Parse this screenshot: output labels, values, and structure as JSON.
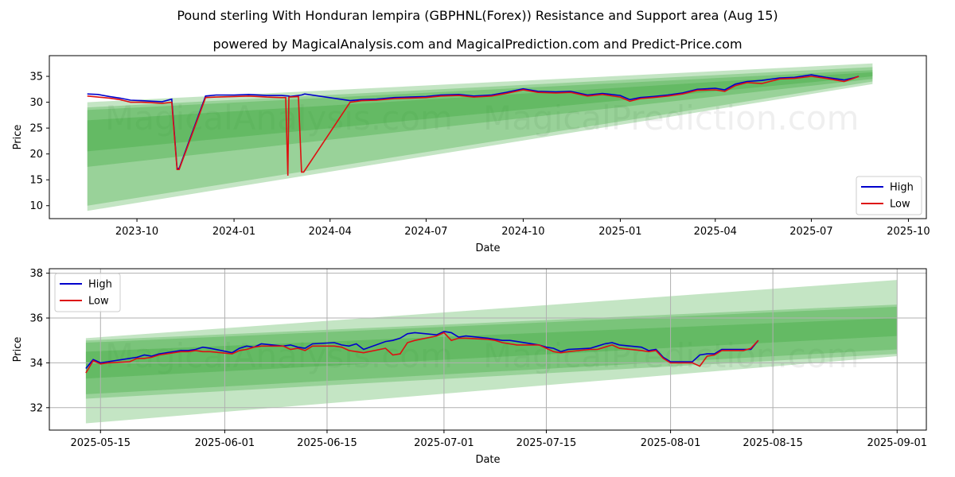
{
  "title": "Pound sterling With Honduran lempira (GBPHNL(Forex)) Resistance and Support area (Aug 15)",
  "subtitle": "powered by MagicalAnalysis.com and MagicalPrediction.com and Predict-Price.com",
  "watermarks": [
    "MagicalAnalysis.com",
    "MagicalPrediction.com"
  ],
  "colors": {
    "high": "#0000cc",
    "low": "#dd1111",
    "band": "#2ca02c",
    "grid": "#b0b0b0"
  },
  "chart_data": [
    {
      "type": "line",
      "xlabel": "Date",
      "ylabel": "Price",
      "x_ticks": [
        "2023-10",
        "2024-01",
        "2024-04",
        "2024-07",
        "2024-10",
        "2025-01",
        "2025-04",
        "2025-07",
        "2025-10"
      ],
      "y_ticks": [
        10,
        15,
        20,
        25,
        30,
        35
      ],
      "xlim": [
        "2023-07-10",
        "2025-10-18"
      ],
      "ylim": [
        7.5,
        39
      ],
      "grid": false,
      "legend": "lower-right",
      "legend_entries": [
        "High",
        "Low"
      ],
      "bands": [
        {
          "x": [
            "2023-08-15",
            "2025-08-28"
          ],
          "lower": [
            9.0,
            33.5
          ],
          "upper": [
            30.0,
            37.5
          ]
        },
        {
          "x": [
            "2023-08-15",
            "2025-08-28"
          ],
          "lower": [
            10.0,
            34.0
          ],
          "upper": [
            29.0,
            36.8
          ]
        },
        {
          "x": [
            "2023-08-15",
            "2025-08-28"
          ],
          "lower": [
            17.5,
            34.5
          ],
          "upper": [
            28.5,
            36.2
          ]
        },
        {
          "x": [
            "2023-08-15",
            "2025-08-28"
          ],
          "lower": [
            20.5,
            35.0
          ],
          "upper": [
            26.5,
            35.8
          ]
        }
      ],
      "series": [
        {
          "name": "High",
          "x": [
            "2023-08-15",
            "2023-08-25",
            "2023-09-05",
            "2023-09-15",
            "2023-09-25",
            "2023-10-05",
            "2023-10-15",
            "2023-10-25",
            "2023-11-03",
            "2023-11-08",
            "2023-11-10",
            "2023-12-05",
            "2023-12-15",
            "2024-01-01",
            "2024-01-15",
            "2024-02-01",
            "2024-02-15",
            "2024-02-22",
            "2024-02-23",
            "2024-03-05",
            "2024-03-08",
            "2024-04-20",
            "2024-05-01",
            "2024-05-15",
            "2024-06-01",
            "2024-06-15",
            "2024-07-01",
            "2024-07-15",
            "2024-08-01",
            "2024-08-15",
            "2024-09-01",
            "2024-09-15",
            "2024-10-01",
            "2024-10-15",
            "2024-11-01",
            "2024-11-15",
            "2024-12-01",
            "2024-12-15",
            "2025-01-01",
            "2025-01-10",
            "2025-01-20",
            "2025-02-01",
            "2025-02-15",
            "2025-03-01",
            "2025-03-15",
            "2025-04-01",
            "2025-04-10",
            "2025-04-20",
            "2025-05-01",
            "2025-05-15",
            "2025-06-01",
            "2025-06-15",
            "2025-07-01",
            "2025-07-15",
            "2025-08-01",
            "2025-08-10",
            "2025-08-15"
          ],
          "values": [
            31.6,
            31.5,
            31.1,
            30.8,
            30.4,
            30.3,
            30.2,
            30.1,
            30.6,
            17.2,
            17.2,
            31.2,
            31.4,
            31.4,
            31.5,
            31.3,
            31.3,
            31.2,
            31.1,
            31.4,
            31.6,
            30.3,
            30.5,
            30.6,
            30.9,
            31.0,
            31.1,
            31.4,
            31.5,
            31.2,
            31.4,
            31.9,
            32.6,
            32.1,
            32.0,
            32.1,
            31.4,
            31.7,
            31.3,
            30.5,
            30.9,
            31.1,
            31.4,
            31.8,
            32.5,
            32.7,
            32.4,
            33.5,
            34.0,
            34.2,
            34.7,
            34.8,
            35.3,
            34.8,
            34.3,
            34.7,
            35.0
          ]
        },
        {
          "name": "Low",
          "x": [
            "2023-08-15",
            "2023-08-25",
            "2023-09-05",
            "2023-09-15",
            "2023-09-25",
            "2023-10-05",
            "2023-10-15",
            "2023-10-25",
            "2023-11-03",
            "2023-11-08",
            "2023-11-10",
            "2023-12-05",
            "2023-12-15",
            "2024-01-01",
            "2024-01-15",
            "2024-02-01",
            "2024-02-15",
            "2024-02-19",
            "2024-02-21",
            "2024-02-22",
            "2024-03-02",
            "2024-03-05",
            "2024-03-07",
            "2024-04-20",
            "2024-05-01",
            "2024-05-15",
            "2024-06-01",
            "2024-06-15",
            "2024-07-01",
            "2024-07-15",
            "2024-08-01",
            "2024-08-15",
            "2024-09-01",
            "2024-09-15",
            "2024-10-01",
            "2024-10-15",
            "2024-11-01",
            "2024-11-15",
            "2024-12-01",
            "2024-12-15",
            "2025-01-01",
            "2025-01-10",
            "2025-01-20",
            "2025-02-01",
            "2025-02-15",
            "2025-03-01",
            "2025-03-15",
            "2025-04-01",
            "2025-04-10",
            "2025-04-20",
            "2025-05-01",
            "2025-05-15",
            "2025-06-01",
            "2025-06-15",
            "2025-07-01",
            "2025-07-15",
            "2025-08-01",
            "2025-08-10",
            "2025-08-15"
          ],
          "values": [
            31.2,
            31.0,
            30.8,
            30.5,
            30.0,
            30.0,
            29.9,
            29.8,
            30.0,
            17.0,
            17.0,
            30.9,
            31.0,
            31.1,
            31.2,
            31.0,
            30.9,
            30.9,
            15.8,
            31.0,
            31.1,
            16.5,
            16.5,
            30.0,
            30.3,
            30.4,
            30.7,
            30.8,
            30.9,
            31.2,
            31.3,
            31.0,
            31.2,
            31.7,
            32.4,
            31.9,
            31.8,
            31.9,
            31.2,
            31.5,
            31.0,
            30.2,
            30.7,
            30.9,
            31.2,
            31.6,
            32.3,
            32.4,
            32.1,
            33.2,
            33.8,
            33.6,
            34.5,
            34.6,
            35.0,
            34.6,
            34.0,
            34.6,
            35.0
          ]
        }
      ]
    },
    {
      "type": "line",
      "xlabel": "Date",
      "ylabel": "Price",
      "x_ticks": [
        "2025-05-15",
        "2025-06-01",
        "2025-06-15",
        "2025-07-01",
        "2025-07-15",
        "2025-08-01",
        "2025-08-15",
        "2025-09-01"
      ],
      "y_ticks": [
        32,
        34,
        36,
        38
      ],
      "xlim": [
        "2025-05-08",
        "2025-09-05"
      ],
      "ylim": [
        31.0,
        38.2
      ],
      "grid": true,
      "legend": "top-left",
      "legend_entries": [
        "High",
        "Low"
      ],
      "bands": [
        {
          "x": [
            "2025-05-13",
            "2025-09-01"
          ],
          "lower": [
            31.3,
            34.3
          ],
          "upper": [
            35.1,
            37.7
          ]
        },
        {
          "x": [
            "2025-05-13",
            "2025-09-01"
          ],
          "lower": [
            32.4,
            34.4
          ],
          "upper": [
            35.0,
            36.6
          ]
        },
        {
          "x": [
            "2025-05-13",
            "2025-09-01"
          ],
          "lower": [
            32.6,
            34.6
          ],
          "upper": [
            34.9,
            36.5
          ]
        },
        {
          "x": [
            "2025-05-13",
            "2025-09-01"
          ],
          "lower": [
            33.3,
            35.2
          ],
          "upper": [
            34.5,
            36.0
          ]
        }
      ],
      "series": [
        {
          "name": "High",
          "x": [
            "2025-05-13",
            "2025-05-14",
            "2025-05-15",
            "2025-05-16",
            "2025-05-19",
            "2025-05-20",
            "2025-05-21",
            "2025-05-22",
            "2025-05-23",
            "2025-05-26",
            "2025-05-27",
            "2025-05-28",
            "2025-05-29",
            "2025-05-30",
            "2025-06-02",
            "2025-06-03",
            "2025-06-04",
            "2025-06-05",
            "2025-06-06",
            "2025-06-09",
            "2025-06-10",
            "2025-06-11",
            "2025-06-12",
            "2025-06-13",
            "2025-06-16",
            "2025-06-17",
            "2025-06-18",
            "2025-06-19",
            "2025-06-20",
            "2025-06-23",
            "2025-06-24",
            "2025-06-25",
            "2025-06-26",
            "2025-06-27",
            "2025-06-30",
            "2025-07-01",
            "2025-07-02",
            "2025-07-03",
            "2025-07-04",
            "2025-07-07",
            "2025-07-08",
            "2025-07-09",
            "2025-07-10",
            "2025-07-11",
            "2025-07-14",
            "2025-07-15",
            "2025-07-16",
            "2025-07-17",
            "2025-07-18",
            "2025-07-21",
            "2025-07-22",
            "2025-07-23",
            "2025-07-24",
            "2025-07-25",
            "2025-07-28",
            "2025-07-29",
            "2025-07-30",
            "2025-07-31",
            "2025-08-01",
            "2025-08-04",
            "2025-08-05",
            "2025-08-06",
            "2025-08-07",
            "2025-08-08",
            "2025-08-11",
            "2025-08-12",
            "2025-08-13"
          ],
          "values": [
            33.75,
            34.15,
            34.0,
            34.05,
            34.2,
            34.25,
            34.35,
            34.3,
            34.4,
            34.55,
            34.55,
            34.6,
            34.7,
            34.65,
            34.45,
            34.65,
            34.75,
            34.7,
            34.85,
            34.75,
            34.8,
            34.7,
            34.65,
            34.85,
            34.9,
            34.8,
            34.75,
            34.85,
            34.6,
            34.95,
            35.0,
            35.1,
            35.3,
            35.35,
            35.25,
            35.4,
            35.35,
            35.15,
            35.2,
            35.1,
            35.05,
            35.0,
            35.0,
            34.95,
            34.8,
            34.7,
            34.65,
            34.5,
            34.6,
            34.65,
            34.75,
            34.85,
            34.9,
            34.8,
            34.7,
            34.55,
            34.6,
            34.25,
            34.05,
            34.05,
            34.35,
            34.4,
            34.4,
            34.6,
            34.6,
            34.6,
            35.0
          ]
        },
        {
          "name": "Low",
          "x": [
            "2025-05-13",
            "2025-05-14",
            "2025-05-15",
            "2025-05-16",
            "2025-05-19",
            "2025-05-20",
            "2025-05-21",
            "2025-05-22",
            "2025-05-23",
            "2025-05-26",
            "2025-05-27",
            "2025-05-28",
            "2025-05-29",
            "2025-05-30",
            "2025-06-02",
            "2025-06-03",
            "2025-06-04",
            "2025-06-05",
            "2025-06-06",
            "2025-06-09",
            "2025-06-10",
            "2025-06-11",
            "2025-06-12",
            "2025-06-13",
            "2025-06-16",
            "2025-06-17",
            "2025-06-18",
            "2025-06-19",
            "2025-06-20",
            "2025-06-23",
            "2025-06-24",
            "2025-06-25",
            "2025-06-26",
            "2025-06-27",
            "2025-06-30",
            "2025-07-01",
            "2025-07-02",
            "2025-07-03",
            "2025-07-04",
            "2025-07-07",
            "2025-07-08",
            "2025-07-09",
            "2025-07-10",
            "2025-07-11",
            "2025-07-14",
            "2025-07-15",
            "2025-07-16",
            "2025-07-17",
            "2025-07-18",
            "2025-07-21",
            "2025-07-22",
            "2025-07-23",
            "2025-07-24",
            "2025-07-25",
            "2025-07-28",
            "2025-07-29",
            "2025-07-30",
            "2025-07-31",
            "2025-08-01",
            "2025-08-04",
            "2025-08-05",
            "2025-08-06",
            "2025-08-07",
            "2025-08-08",
            "2025-08-11",
            "2025-08-12",
            "2025-08-13"
          ],
          "values": [
            33.55,
            34.1,
            33.95,
            34.0,
            34.05,
            34.2,
            34.2,
            34.25,
            34.35,
            34.5,
            34.5,
            34.55,
            34.5,
            34.5,
            34.4,
            34.55,
            34.6,
            34.7,
            34.75,
            34.75,
            34.6,
            34.65,
            34.55,
            34.75,
            34.75,
            34.7,
            34.55,
            34.5,
            34.45,
            34.65,
            34.35,
            34.4,
            34.9,
            35.0,
            35.2,
            35.35,
            35.0,
            35.1,
            35.1,
            35.05,
            35.0,
            34.9,
            34.85,
            34.8,
            34.8,
            34.65,
            34.5,
            34.45,
            34.5,
            34.6,
            34.6,
            34.7,
            34.8,
            34.65,
            34.55,
            34.5,
            34.55,
            34.2,
            34.0,
            34.0,
            33.85,
            34.3,
            34.35,
            34.55,
            34.55,
            34.65,
            35.0
          ]
        }
      ]
    }
  ]
}
